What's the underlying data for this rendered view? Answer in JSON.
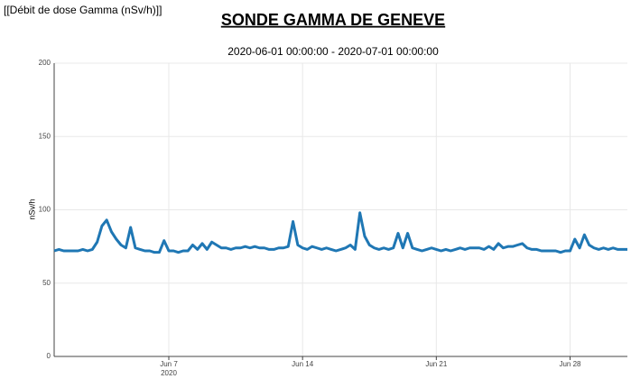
{
  "chart_data": {
    "type": "line",
    "header": "[[Débit de dose Gamma (nSv/h)]]",
    "title": "SONDE GAMMA DE GENEVE",
    "subtitle": "2020-06-01 00:00:00 - 2020-07-01 00:00:00",
    "ylabel": "nSv/h",
    "x": [
      "2020-06-01T00:00",
      "2020-06-01T06:00",
      "2020-06-01T12:00",
      "2020-06-01T18:00",
      "2020-06-02T00:00",
      "2020-06-02T06:00",
      "2020-06-02T12:00",
      "2020-06-02T18:00",
      "2020-06-03T00:00",
      "2020-06-03T06:00",
      "2020-06-03T12:00",
      "2020-06-03T18:00",
      "2020-06-04T00:00",
      "2020-06-04T06:00",
      "2020-06-04T12:00",
      "2020-06-04T18:00",
      "2020-06-05T00:00",
      "2020-06-05T06:00",
      "2020-06-05T12:00",
      "2020-06-05T18:00",
      "2020-06-06T00:00",
      "2020-06-06T06:00",
      "2020-06-06T12:00",
      "2020-06-06T18:00",
      "2020-06-07T00:00",
      "2020-06-07T06:00",
      "2020-06-07T12:00",
      "2020-06-07T18:00",
      "2020-06-08T00:00",
      "2020-06-08T06:00",
      "2020-06-08T12:00",
      "2020-06-08T18:00",
      "2020-06-09T00:00",
      "2020-06-09T06:00",
      "2020-06-09T12:00",
      "2020-06-09T18:00",
      "2020-06-10T00:00",
      "2020-06-10T06:00",
      "2020-06-10T12:00",
      "2020-06-10T18:00",
      "2020-06-11T00:00",
      "2020-06-11T06:00",
      "2020-06-11T12:00",
      "2020-06-11T18:00",
      "2020-06-12T00:00",
      "2020-06-12T06:00",
      "2020-06-12T12:00",
      "2020-06-12T18:00",
      "2020-06-13T00:00",
      "2020-06-13T06:00",
      "2020-06-13T12:00",
      "2020-06-13T18:00",
      "2020-06-14T00:00",
      "2020-06-14T06:00",
      "2020-06-14T12:00",
      "2020-06-14T18:00",
      "2020-06-15T00:00",
      "2020-06-15T06:00",
      "2020-06-15T12:00",
      "2020-06-15T18:00",
      "2020-06-16T00:00",
      "2020-06-16T06:00",
      "2020-06-16T12:00",
      "2020-06-16T18:00",
      "2020-06-17T00:00",
      "2020-06-17T06:00",
      "2020-06-17T12:00",
      "2020-06-17T18:00",
      "2020-06-18T00:00",
      "2020-06-18T06:00",
      "2020-06-18T12:00",
      "2020-06-18T18:00",
      "2020-06-19T00:00",
      "2020-06-19T06:00",
      "2020-06-19T12:00",
      "2020-06-19T18:00",
      "2020-06-20T00:00",
      "2020-06-20T06:00",
      "2020-06-20T12:00",
      "2020-06-20T18:00",
      "2020-06-21T00:00",
      "2020-06-21T06:00",
      "2020-06-21T12:00",
      "2020-06-21T18:00",
      "2020-06-22T00:00",
      "2020-06-22T06:00",
      "2020-06-22T12:00",
      "2020-06-22T18:00",
      "2020-06-23T00:00",
      "2020-06-23T06:00",
      "2020-06-23T12:00",
      "2020-06-23T18:00",
      "2020-06-24T00:00",
      "2020-06-24T06:00",
      "2020-06-24T12:00",
      "2020-06-24T18:00",
      "2020-06-25T00:00",
      "2020-06-25T06:00",
      "2020-06-25T12:00",
      "2020-06-25T18:00",
      "2020-06-26T00:00",
      "2020-06-26T06:00",
      "2020-06-26T12:00",
      "2020-06-26T18:00",
      "2020-06-27T00:00",
      "2020-06-27T06:00",
      "2020-06-27T12:00",
      "2020-06-27T18:00",
      "2020-06-28T00:00",
      "2020-06-28T06:00",
      "2020-06-28T12:00",
      "2020-06-28T18:00",
      "2020-06-29T00:00",
      "2020-06-29T06:00",
      "2020-06-29T12:00",
      "2020-06-29T18:00",
      "2020-06-30T00:00",
      "2020-06-30T06:00",
      "2020-06-30T12:00",
      "2020-06-30T18:00",
      "2020-07-01T00:00"
    ],
    "values": [
      72,
      73,
      72,
      72,
      72,
      72,
      73,
      72,
      73,
      78,
      89,
      93,
      85,
      80,
      76,
      74,
      88,
      74,
      73,
      72,
      72,
      71,
      71,
      79,
      72,
      72,
      71,
      72,
      72,
      76,
      73,
      77,
      73,
      78,
      76,
      74,
      74,
      73,
      74,
      74,
      75,
      74,
      75,
      74,
      74,
      73,
      73,
      74,
      74,
      75,
      92,
      76,
      74,
      73,
      75,
      74,
      73,
      74,
      73,
      72,
      73,
      74,
      76,
      73,
      98,
      82,
      76,
      74,
      73,
      74,
      73,
      74,
      84,
      74,
      84,
      74,
      73,
      72,
      73,
      74,
      73,
      72,
      73,
      72,
      73,
      74,
      73,
      74,
      74,
      74,
      73,
      75,
      73,
      77,
      74,
      75,
      75,
      76,
      77,
      74,
      73,
      73,
      72,
      72,
      72,
      72,
      71,
      72,
      72,
      80,
      74,
      83,
      76,
      74,
      73,
      74,
      73,
      74,
      73,
      73,
      73
    ],
    "color": "#1f77b4",
    "xlim": [
      "2020-06-01T00:00",
      "2020-07-01T00:00"
    ],
    "xticks": [
      {
        "value": "2020-06-07T00:00",
        "label": "Jun 7"
      },
      {
        "value": "2020-06-14T00:00",
        "label": "Jun 14"
      },
      {
        "value": "2020-06-21T00:00",
        "label": "Jun 21"
      },
      {
        "value": "2020-06-28T00:00",
        "label": "Jun 28"
      }
    ],
    "xtick_year": "2020",
    "ylim": [
      0,
      200
    ],
    "yticks": [
      0,
      50,
      100,
      150,
      200
    ],
    "grid": true
  }
}
